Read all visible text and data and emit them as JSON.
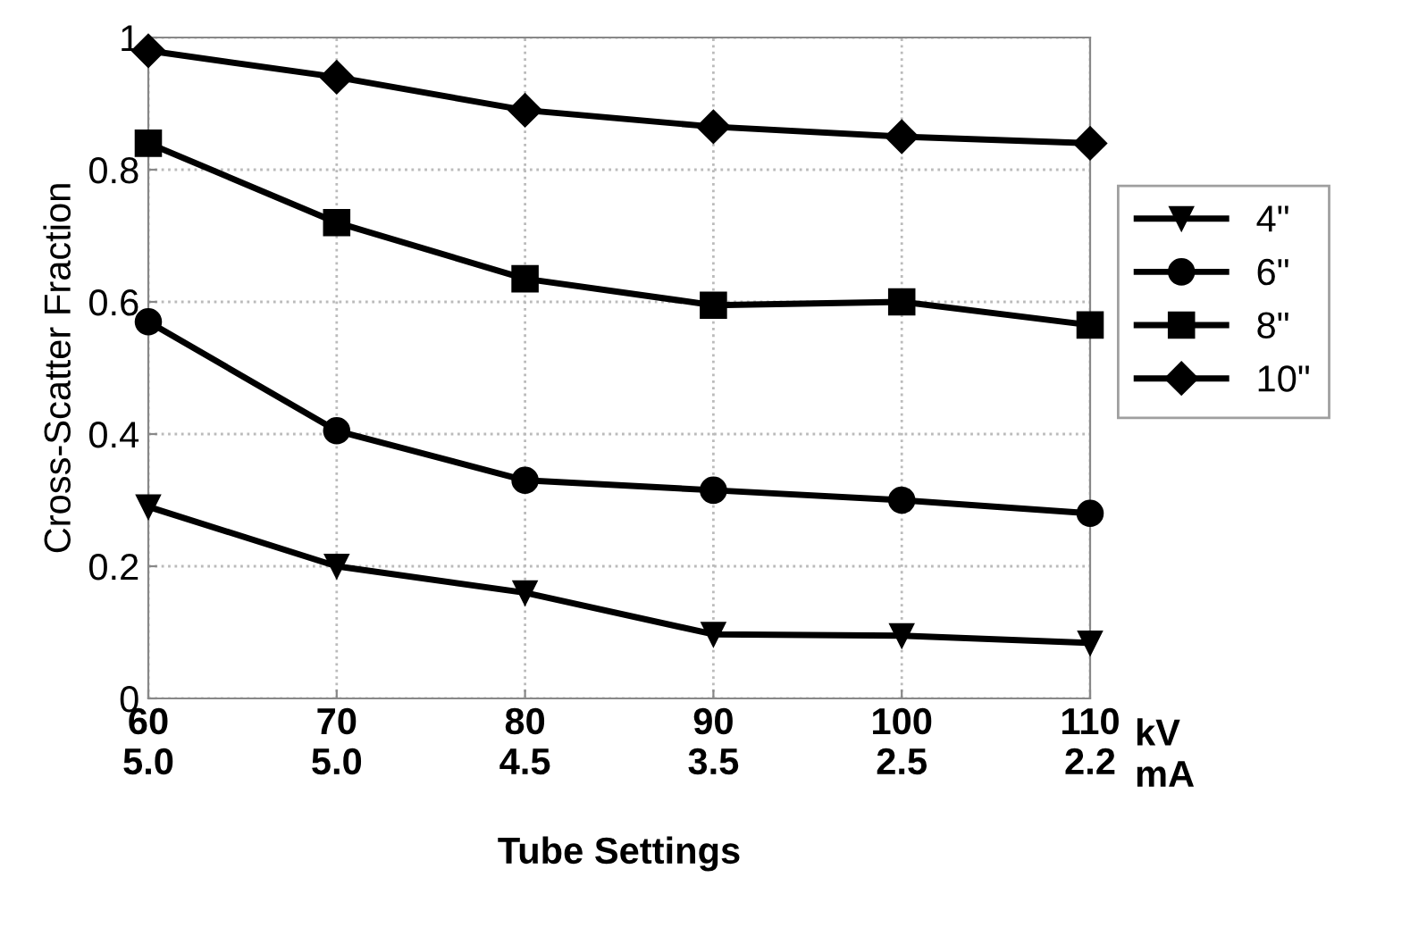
{
  "chart_data": {
    "type": "line",
    "xlabel": "Tube Settings",
    "ylabel": "Cross-Scatter Fraction",
    "categories": [
      "60\n5.0",
      "70\n5.0",
      "80\n4.5",
      "90\n3.5",
      "100\n2.5",
      "110\n2.2"
    ],
    "annotations": [
      "kV\nmA"
    ],
    "series": [
      {
        "name": "4\"",
        "color": "#000000",
        "marker": "triangle",
        "values": [
          0.29,
          0.2,
          0.16,
          0.097,
          0.095,
          0.084
        ]
      },
      {
        "name": "6\"",
        "color": "#000000",
        "marker": "circle",
        "values": [
          0.57,
          0.405,
          0.33,
          0.315,
          0.3,
          0.28
        ]
      },
      {
        "name": "8\"",
        "color": "#000000",
        "marker": "square",
        "values": [
          0.84,
          0.72,
          0.635,
          0.595,
          0.6,
          0.565
        ]
      },
      {
        "name": "10\"",
        "color": "#000000",
        "marker": "diamond",
        "values": [
          0.98,
          0.94,
          0.89,
          0.865,
          0.85,
          0.84
        ]
      }
    ],
    "ylim": [
      0,
      1
    ],
    "yticks": [
      0,
      0.2,
      0.4,
      0.6,
      0.8,
      1
    ],
    "grid": true,
    "legend": "right",
    "line_style": "solid"
  }
}
